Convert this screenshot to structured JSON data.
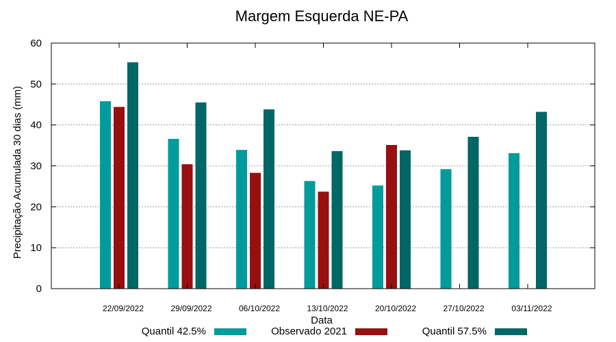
{
  "chart_data": {
    "type": "bar",
    "title": "Margem Esquerda NE-PA",
    "xlabel": "Data",
    "ylabel": "Precipitação Acumulada 30 dias (mm)",
    "ylim": [
      0,
      60
    ],
    "yticks": [
      "0",
      "10",
      "20",
      "30",
      "40",
      "50",
      "60"
    ],
    "grid": true,
    "legend_position": "bottom",
    "categories": [
      "22/09/2022",
      "29/09/2022",
      "06/10/2022",
      "13/10/2022",
      "20/10/2022",
      "27/10/2022",
      "03/11/2022"
    ],
    "series": [
      {
        "name": "Quantil 42.5%",
        "color": "#009b9b",
        "values": [
          45.8,
          36.6,
          33.9,
          26.3,
          25.2,
          29.2,
          33.1
        ]
      },
      {
        "name": "Observado 2021",
        "color": "#961010",
        "values": [
          44.4,
          30.4,
          28.3,
          23.7,
          35.1,
          null,
          null
        ]
      },
      {
        "name": "Quantil 57.5%",
        "color": "#006666",
        "values": [
          55.3,
          45.5,
          43.8,
          33.6,
          33.8,
          37.1,
          43.2
        ]
      }
    ]
  }
}
